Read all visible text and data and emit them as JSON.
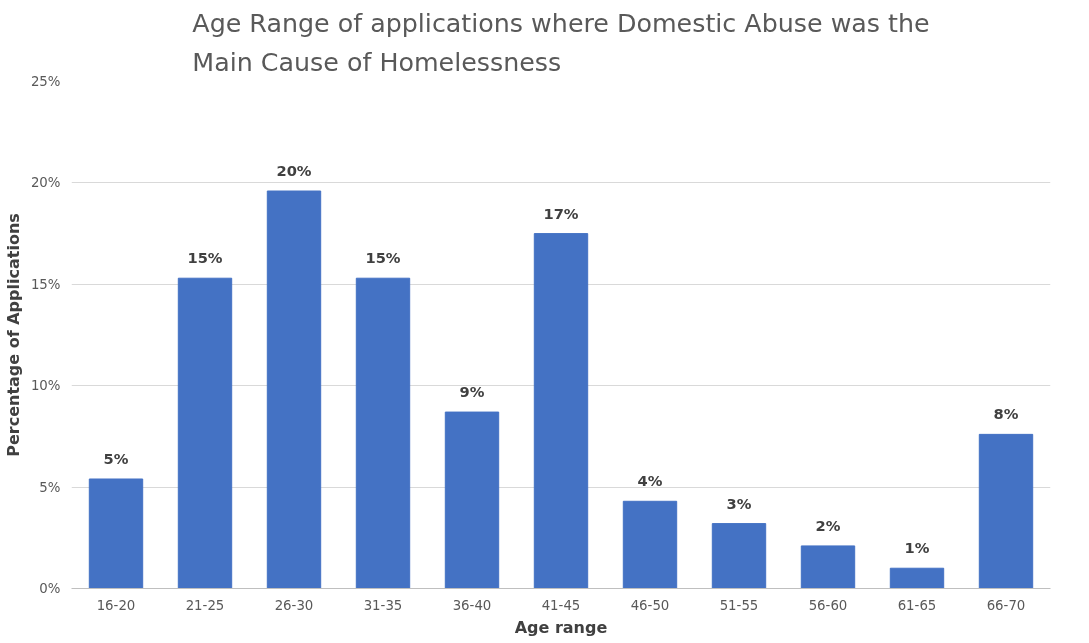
{
  "chart_data": {
    "type": "bar",
    "title": "Age Range of applications where Domestic Abuse was the\nMain Cause of Homelessness",
    "xlabel": "Age range",
    "ylabel": "Percentage of Applications",
    "categories": [
      "16-20",
      "21-25",
      "26-30",
      "31-35",
      "36-40",
      "41-45",
      "46-50",
      "51-55",
      "56-60",
      "61-65",
      "66-70"
    ],
    "values": [
      5.4,
      15.3,
      19.6,
      15.3,
      8.7,
      17.5,
      4.3,
      3.2,
      2.1,
      1.0,
      7.6
    ],
    "value_labels": [
      "5%",
      "15%",
      "20%",
      "15%",
      "9%",
      "17%",
      "4%",
      "3%",
      "2%",
      "1%",
      "8%"
    ],
    "color": "#4472c4",
    "ylim": [
      0,
      25
    ],
    "yticks": [
      {
        "value": 0,
        "label": "0%"
      },
      {
        "value": 5,
        "label": "5%"
      },
      {
        "value": 10,
        "label": "10%"
      },
      {
        "value": 15,
        "label": "15%"
      },
      {
        "value": 20,
        "label": "20%"
      },
      {
        "value": 25,
        "label": "25%"
      }
    ],
    "grid": "y"
  }
}
